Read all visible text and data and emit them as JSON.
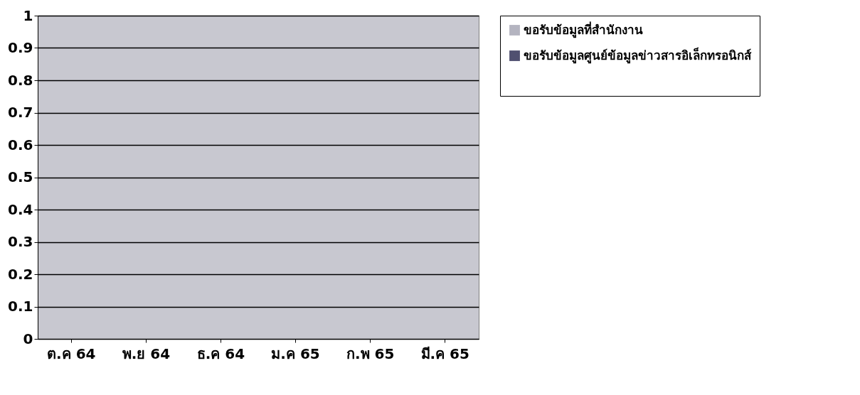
{
  "chart_data": {
    "type": "bar",
    "categories": [
      "ต.ค 64",
      "พ.ย 64",
      "ธ.ค 64",
      "ม.ค 65",
      "ก.พ 65",
      "มี.ค 65"
    ],
    "series": [
      {
        "name": "ขอรับข้อมูลที่สำนักงาน",
        "color": "#b4b4c0",
        "values": [
          0,
          0,
          0,
          0,
          0,
          0
        ]
      },
      {
        "name": "ขอรับข้อมูลศูนย์ข้อมูลข่าวสารอิเล็กทรอนิกส์",
        "color": "#505070",
        "values": [
          0,
          0,
          0,
          0,
          0,
          0
        ]
      },
      {
        "color": "#ffffff",
        "values": [
          0,
          0,
          0,
          0,
          0,
          0
        ]
      }
    ],
    "ylim": [
      0,
      1
    ],
    "yticks": [
      0,
      0.1,
      0.2,
      0.3,
      0.4,
      0.5,
      0.6,
      0.7,
      0.8,
      0.9,
      1
    ],
    "grid": "y",
    "legend": "right"
  }
}
